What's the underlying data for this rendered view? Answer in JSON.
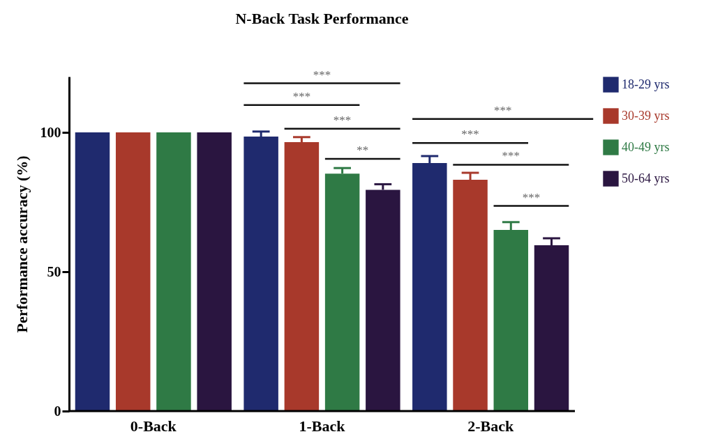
{
  "chart_data": {
    "type": "bar",
    "title": "N-Back Task Performance",
    "ylabel": "Performance accuracy (%)",
    "categories": [
      "0-Back",
      "1-Back",
      "2-Back"
    ],
    "series": [
      {
        "name": "18-29 yrs",
        "color": "#1f2a6e",
        "values": [
          100,
          98.5,
          89
        ],
        "errors": [
          null,
          [
            98.5,
            100.3
          ],
          [
            89,
            91.5
          ]
        ]
      },
      {
        "name": "30-39 yrs",
        "color": "#a8392b",
        "values": [
          100,
          96.5,
          83
        ],
        "errors": [
          null,
          [
            96.5,
            98.3
          ],
          [
            83,
            85.5
          ]
        ]
      },
      {
        "name": "40-49 yrs",
        "color": "#2f7a45",
        "values": [
          100,
          85.2,
          65
        ],
        "errors": [
          null,
          [
            85.2,
            87.2
          ],
          [
            65,
            67.8
          ]
        ]
      },
      {
        "name": "50-64 yrs",
        "color": "#2a1540",
        "values": [
          100,
          79.4,
          59.5
        ],
        "errors": [
          null,
          [
            79.4,
            81.4
          ],
          [
            59.5,
            62
          ]
        ]
      }
    ],
    "ylim": [
      0,
      120
    ],
    "yticks": [
      0,
      50,
      100
    ],
    "grid": false,
    "legend": "right",
    "annotations": [
      "***",
      "***",
      "***",
      "**",
      "***",
      "***",
      "***",
      "***"
    ]
  }
}
